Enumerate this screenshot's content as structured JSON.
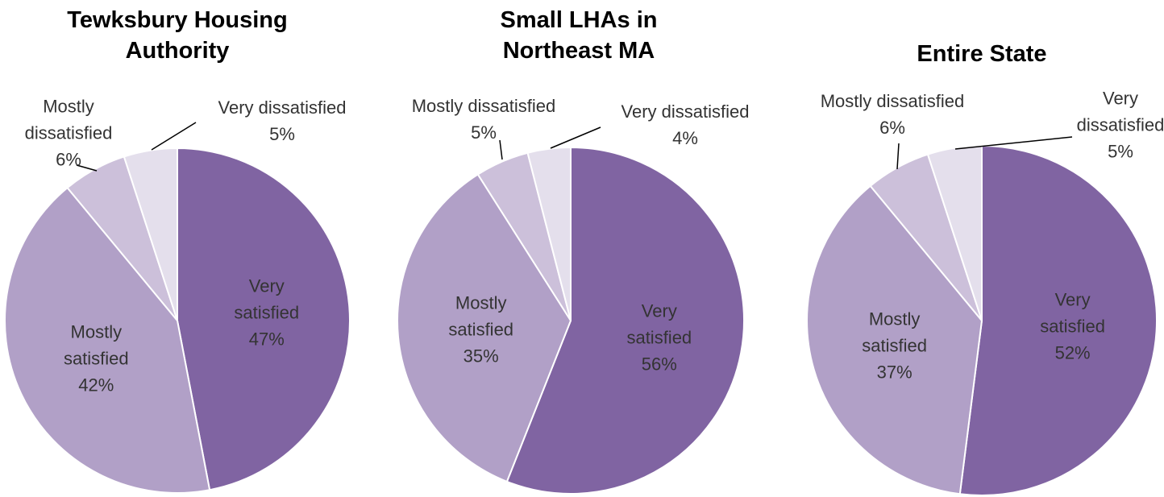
{
  "chart_data": [
    {
      "type": "pie",
      "title": "Tewksbury Housing Authority",
      "categories": [
        "Very satisfied",
        "Mostly satisfied",
        "Mostly dissatisfied",
        "Very dissatisfied"
      ],
      "values": [
        47,
        42,
        6,
        5
      ],
      "value_labels": [
        "47%",
        "42%",
        "6%",
        "5%"
      ],
      "colors": [
        "#8064a2",
        "#b1a0c7",
        "#ccc0da",
        "#e4dfec"
      ]
    },
    {
      "type": "pie",
      "title": "Small LHAs in Northeast MA",
      "categories": [
        "Very satisfied",
        "Mostly satisfied",
        "Mostly dissatisfied",
        "Very dissatisfied"
      ],
      "values": [
        56,
        35,
        5,
        4
      ],
      "value_labels": [
        "56%",
        "35%",
        "5%",
        "4%"
      ],
      "colors": [
        "#8064a2",
        "#b1a0c7",
        "#ccc0da",
        "#e4dfec"
      ]
    },
    {
      "type": "pie",
      "title": "Entire State",
      "categories": [
        "Very satisfied",
        "Mostly satisfied",
        "Mostly dissatisfied",
        "Very dissatisfied"
      ],
      "values": [
        52,
        37,
        6,
        5
      ],
      "value_labels": [
        "52%",
        "37%",
        "6%",
        "5%"
      ],
      "colors": [
        "#8064a2",
        "#b1a0c7",
        "#ccc0da",
        "#e4dfec"
      ]
    }
  ]
}
